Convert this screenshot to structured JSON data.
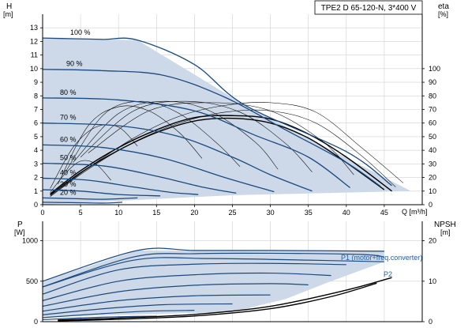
{
  "chart_data": [
    {
      "type": "line",
      "title": "TPE2 D 65-120-N, 3*400 V",
      "xlabel": "Q [m³/h]",
      "ylabel": "H",
      "ylabel_unit": "[m]",
      "y2label": "eta",
      "y2label_unit": "[%]",
      "xlim": [
        0,
        50
      ],
      "ylim": [
        0,
        14
      ],
      "y2lim": [
        0,
        140
      ],
      "x_ticks": [
        "0",
        "5",
        "10",
        "15",
        "20",
        "25",
        "30",
        "35",
        "40",
        "45"
      ],
      "y_ticks": [
        "0",
        "1",
        "2",
        "3",
        "4",
        "5",
        "6",
        "7",
        "8",
        "9",
        "10",
        "11",
        "12",
        "13"
      ],
      "y2_ticks": [
        "0",
        "10",
        "20",
        "30",
        "40",
        "50",
        "60",
        "70",
        "80",
        "90",
        "100"
      ],
      "grid": true,
      "max_envelope": [
        [
          0,
          12.25
        ],
        [
          12.5,
          12.1
        ],
        [
          26.7,
          7.3
        ],
        [
          48.5,
          1.0
        ],
        [
          25,
          0.7
        ],
        [
          0,
          0
        ]
      ],
      "head_curves": [
        {
          "label": "100 %",
          "points": [
            [
              0,
              12.25
            ],
            [
              4,
              12.2
            ],
            [
              8,
              12.15
            ],
            [
              12.5,
              12.1
            ],
            [
              20,
              10.3
            ],
            [
              26.7,
              7.3
            ],
            [
              40,
              3.9
            ],
            [
              46,
              1.4
            ]
          ]
        },
        {
          "label": "90 %",
          "points": [
            [
              0,
              9.95
            ],
            [
              8,
              9.85
            ],
            [
              16,
              9.5
            ],
            [
              24,
              7.9
            ],
            [
              32,
              5.5
            ],
            [
              40,
              3.1
            ],
            [
              44.5,
              1.35
            ]
          ]
        },
        {
          "label": "80 %",
          "points": [
            [
              0,
              7.85
            ],
            [
              10,
              7.7
            ],
            [
              20,
              6.9
            ],
            [
              28,
              5.1
            ],
            [
              35,
              3.5
            ],
            [
              40.5,
              1.25
            ]
          ]
        },
        {
          "label": "70 %",
          "points": [
            [
              0,
              6.0
            ],
            [
              10,
              5.8
            ],
            [
              18,
              5.0
            ],
            [
              25,
              3.5
            ],
            [
              30,
              2.2
            ],
            [
              35.5,
              1.0
            ]
          ]
        },
        {
          "label": "60 %",
          "points": [
            [
              0,
              4.4
            ],
            [
              8,
              4.2
            ],
            [
              16,
              3.4
            ],
            [
              24,
              2.0
            ],
            [
              30.5,
              0.95
            ]
          ]
        },
        {
          "label": "50 %",
          "points": [
            [
              0,
              3.05
            ],
            [
              8,
              2.85
            ],
            [
              15,
              2.1
            ],
            [
              21,
              1.3
            ],
            [
              25.5,
              0.85
            ]
          ]
        },
        {
          "label": "40 %",
          "points": [
            [
              0,
              1.95
            ],
            [
              6,
              1.8
            ],
            [
              12,
              1.3
            ],
            [
              17,
              0.9
            ],
            [
              20.5,
              0.75
            ]
          ]
        },
        {
          "label": "30 %",
          "points": [
            [
              0,
              1.1
            ],
            [
              5,
              1.0
            ],
            [
              10,
              0.75
            ],
            [
              15.5,
              0.65
            ]
          ]
        },
        {
          "label": "20 %",
          "points": [
            [
              0,
              0.5
            ],
            [
              4,
              0.45
            ],
            [
              8,
              0.4
            ],
            [
              12.5,
              0.5
            ]
          ]
        },
        {
          "label": "",
          "points": [
            [
              0,
              0.18
            ],
            [
              4,
              0.15
            ],
            [
              8,
              0.12
            ],
            [
              10.5,
              0.18
            ]
          ]
        }
      ],
      "eta_curves_100": [
        [
          [
            1,
            0.8
          ],
          [
            5,
            2.5
          ],
          [
            10,
            4.2
          ],
          [
            15,
            5.5
          ],
          [
            20,
            6.4
          ],
          [
            25,
            6.55
          ],
          [
            30,
            6.3
          ],
          [
            35,
            5.2
          ],
          [
            40,
            3.5
          ],
          [
            46,
            1.0
          ]
        ],
        [
          [
            1,
            0.7
          ],
          [
            5,
            2.35
          ],
          [
            10,
            4.0
          ],
          [
            15,
            5.3
          ],
          [
            20,
            6.15
          ],
          [
            25,
            6.35
          ],
          [
            30,
            6.0
          ],
          [
            35,
            4.9
          ],
          [
            40,
            3.1
          ],
          [
            45,
            1.1
          ]
        ]
      ],
      "eta_curves_thin": [
        [
          [
            1,
            0.6
          ],
          [
            6,
            2.7
          ],
          [
            12,
            4.9
          ],
          [
            18,
            6.5
          ],
          [
            24,
            7.3
          ],
          [
            30,
            7.5
          ],
          [
            36,
            6.8
          ],
          [
            42,
            4.2
          ],
          [
            47.5,
            1.6
          ]
        ],
        [
          [
            1,
            0.6
          ],
          [
            6,
            2.6
          ],
          [
            12,
            4.6
          ],
          [
            18,
            6.0
          ],
          [
            24,
            6.8
          ],
          [
            30,
            6.9
          ],
          [
            36,
            6.0
          ],
          [
            42,
            3.6
          ],
          [
            46.5,
            1.3
          ]
        ],
        [
          [
            2,
            1.5
          ],
          [
            6,
            5.8
          ],
          [
            10,
            7.2
          ],
          [
            14,
            6.9
          ],
          [
            18,
            5.3
          ],
          [
            21,
            3.4
          ]
        ],
        [
          [
            3,
            2.4
          ],
          [
            8,
            6.6
          ],
          [
            13,
            7.6
          ],
          [
            18,
            6.7
          ],
          [
            23,
            4.5
          ],
          [
            26,
            2.8
          ]
        ],
        [
          [
            4,
            3.1
          ],
          [
            10,
            6.7
          ],
          [
            16,
            7.6
          ],
          [
            22,
            6.9
          ],
          [
            28,
            4.6
          ],
          [
            31,
            2.6
          ]
        ],
        [
          [
            5,
            3.5
          ],
          [
            12,
            6.9
          ],
          [
            19,
            7.6
          ],
          [
            26,
            6.8
          ],
          [
            32,
            4.5
          ],
          [
            35.5,
            2.4
          ]
        ],
        [
          [
            6,
            3.8
          ],
          [
            14,
            6.9
          ],
          [
            22,
            7.5
          ],
          [
            30,
            6.9
          ],
          [
            37,
            4.6
          ],
          [
            41,
            2.2
          ]
        ],
        [
          [
            1,
            1.2
          ],
          [
            4,
            4.2
          ],
          [
            7,
            5.7
          ],
          [
            10,
            5.7
          ],
          [
            12.5,
            4.3
          ]
        ],
        [
          [
            1,
            0.9
          ],
          [
            3,
            2.3
          ],
          [
            5,
            3.2
          ],
          [
            7,
            3.0
          ],
          [
            9,
            1.8
          ]
        ]
      ]
    },
    {
      "type": "line",
      "xlim": [
        0,
        50
      ],
      "ylim": [
        0,
        1240
      ],
      "y2lim": [
        0,
        24.8
      ],
      "ylabel": "P",
      "ylabel_unit": "[W]",
      "y2label": "NPSH",
      "y2label_unit": "[m]",
      "y_ticks": [
        "0",
        "500",
        "1000"
      ],
      "y2_ticks": [
        "0",
        "10",
        "20"
      ],
      "grid": true,
      "envelope": [
        [
          0,
          500
        ],
        [
          12.5,
          880
        ],
        [
          45,
          880
        ],
        [
          45,
          740
        ],
        [
          38,
          500
        ],
        [
          32,
          280
        ],
        [
          25,
          120
        ],
        [
          0,
          60
        ]
      ],
      "power_curves": [
        {
          "label": "P1 (motor+freq.converter)",
          "points": [
            [
              0,
              500
            ],
            [
              12.5,
              880
            ],
            [
              20,
              880
            ],
            [
              30,
              880
            ],
            [
              45,
              870
            ]
          ]
        },
        {
          "label": "",
          "points": [
            [
              0,
              430
            ],
            [
              12,
              800
            ],
            [
              20,
              840
            ],
            [
              30,
              845
            ],
            [
              42,
              830
            ],
            [
              45,
              800
            ]
          ]
        },
        {
          "label": "",
          "points": [
            [
              0,
              340
            ],
            [
              10,
              640
            ],
            [
              20,
              710
            ],
            [
              30,
              720
            ],
            [
              40,
              705
            ]
          ]
        },
        {
          "label": "",
          "points": [
            [
              0,
              260
            ],
            [
              10,
              500
            ],
            [
              20,
              580
            ],
            [
              30,
              600
            ],
            [
              38,
              570
            ]
          ]
        },
        {
          "label": "",
          "points": [
            [
              0,
              190
            ],
            [
              10,
              370
            ],
            [
              20,
              450
            ],
            [
              30,
              470
            ],
            [
              35,
              455
            ]
          ]
        },
        {
          "label": "",
          "points": [
            [
              0,
              130
            ],
            [
              10,
              260
            ],
            [
              20,
              320
            ],
            [
              30,
              330
            ]
          ]
        },
        {
          "label": "",
          "points": [
            [
              0,
              85
            ],
            [
              8,
              160
            ],
            [
              16,
              210
            ],
            [
              25,
              220
            ]
          ]
        },
        {
          "label": "",
          "points": [
            [
              0,
              50
            ],
            [
              8,
              100
            ],
            [
              14,
              130
            ],
            [
              20,
              140
            ]
          ]
        },
        {
          "label": "",
          "points": [
            [
              0,
              25
            ],
            [
              6,
              50
            ],
            [
              12,
              65
            ],
            [
              15,
              68
            ]
          ]
        },
        {
          "label": "P2",
          "points": [
            [
              0,
              430
            ],
            [
              12,
              760
            ],
            [
              22,
              780
            ],
            [
              35,
              760
            ],
            [
              45,
              740
            ]
          ]
        }
      ],
      "npsh_curves": [
        [
          [
            2,
            0.2
          ],
          [
            10,
            0.6
          ],
          [
            20,
            1.4
          ],
          [
            30,
            3.2
          ],
          [
            38,
            6.2
          ],
          [
            44,
            9.5
          ]
        ],
        [
          [
            2,
            0.4
          ],
          [
            10,
            0.9
          ],
          [
            20,
            1.8
          ],
          [
            30,
            3.8
          ],
          [
            40,
            7.8
          ],
          [
            46,
            10.9
          ]
        ]
      ],
      "labels": [
        "P1 (motor+freq.converter)",
        "P2"
      ]
    }
  ]
}
